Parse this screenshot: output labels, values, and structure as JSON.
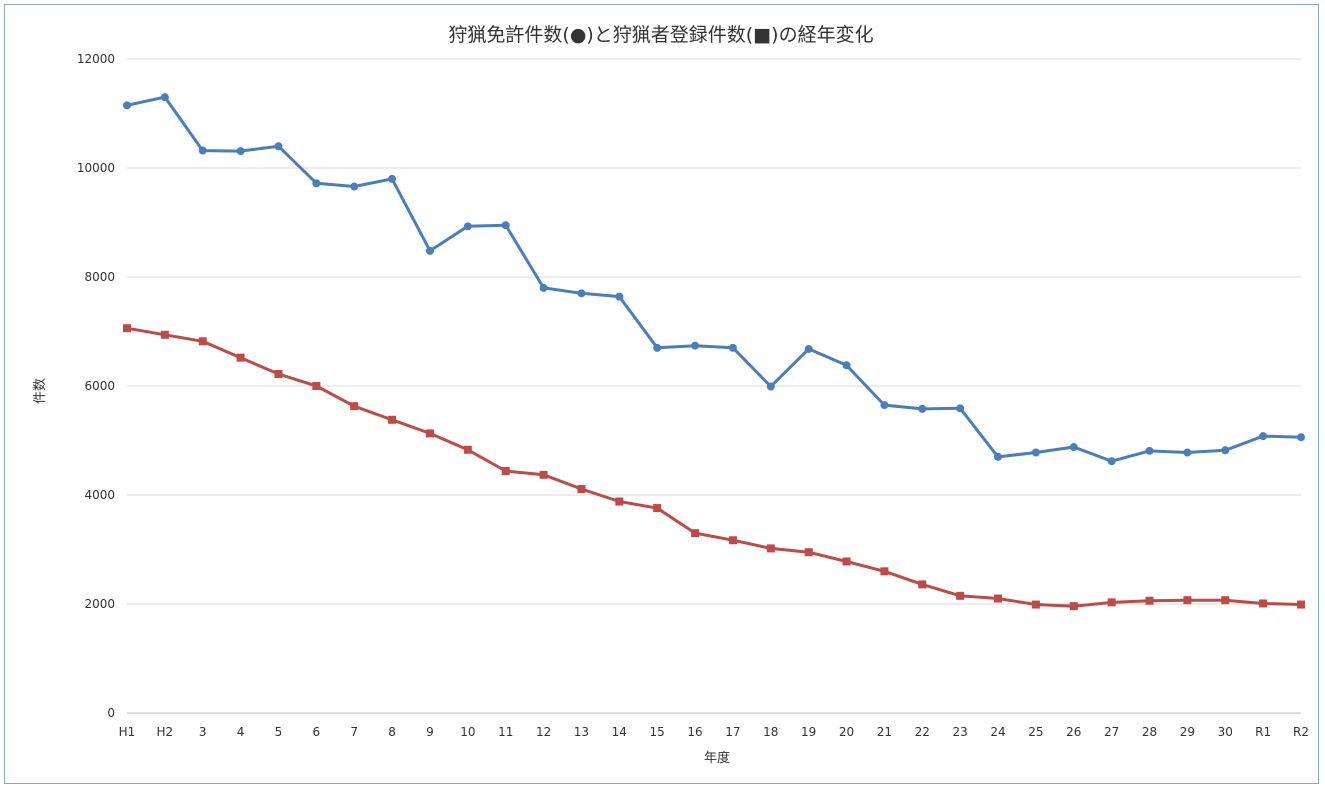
{
  "chart_data": {
    "type": "line",
    "title": "狩猟免許件数(●)と狩猟者登録件数(■)の経年変化",
    "xlabel": "年度",
    "ylabel": "件数",
    "ylim": [
      0,
      12000
    ],
    "yticks": [
      0,
      2000,
      4000,
      6000,
      8000,
      10000,
      12000
    ],
    "grid": true,
    "legend": "none",
    "categories": [
      "H1",
      "H2",
      "3",
      "4",
      "5",
      "6",
      "7",
      "8",
      "9",
      "10",
      "11",
      "12",
      "13",
      "14",
      "15",
      "16",
      "17",
      "18",
      "19",
      "20",
      "21",
      "22",
      "23",
      "24",
      "25",
      "26",
      "27",
      "28",
      "29",
      "30",
      "R1",
      "R2"
    ],
    "series": [
      {
        "marker": "circle",
        "color": "#4a7ebb",
        "values": [
          11150,
          11300,
          10320,
          10310,
          10400,
          9720,
          9660,
          9800,
          8480,
          8930,
          8950,
          7800,
          7700,
          7640,
          6700,
          6740,
          6700,
          5990,
          6680,
          6380,
          5650,
          5580,
          5590,
          4700,
          4780,
          4880,
          4620,
          4810,
          4780,
          4820,
          5080,
          5060
        ]
      },
      {
        "marker": "square",
        "color": "#be4b48",
        "values": [
          7060,
          6940,
          6820,
          6520,
          6220,
          6000,
          5630,
          5380,
          5130,
          4830,
          4440,
          4370,
          4110,
          3880,
          3760,
          3300,
          3170,
          3020,
          2950,
          2780,
          2600,
          2360,
          2150,
          2100,
          1990,
          1960,
          2030,
          2060,
          2070,
          2070,
          2010,
          1990
        ]
      }
    ]
  }
}
